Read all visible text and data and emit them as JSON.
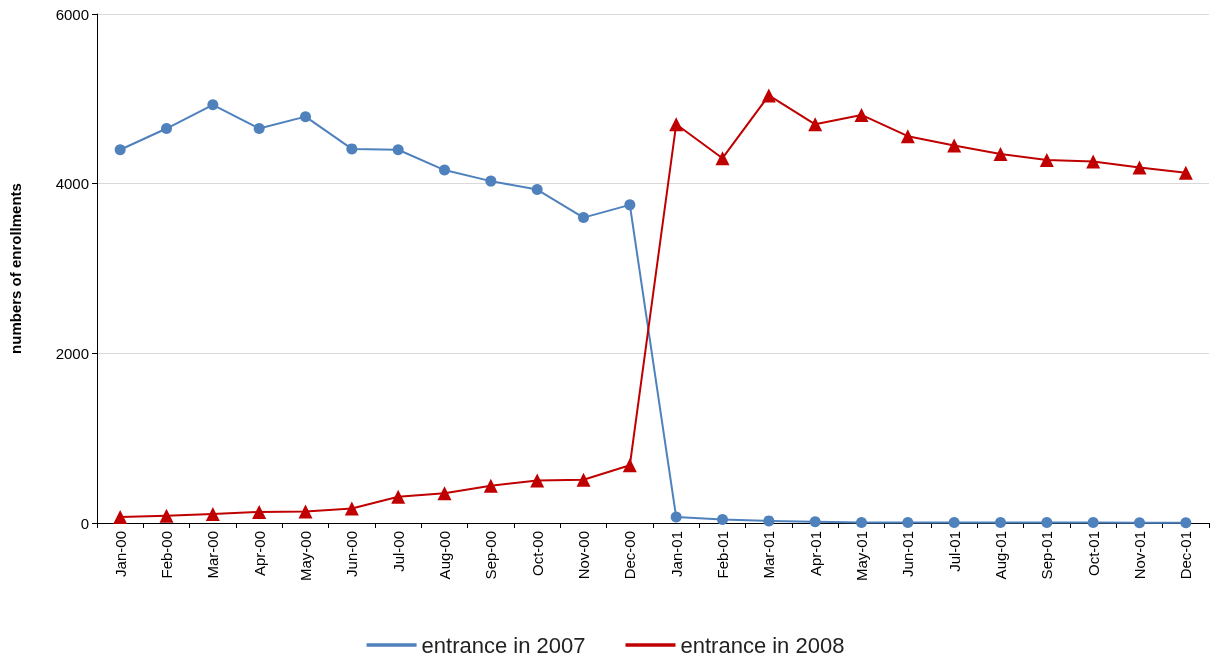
{
  "chart_data": {
    "type": "line",
    "ylabel": "numbers of enrollments",
    "categories": [
      "Jan-00",
      "Feb-00",
      "Mar-00",
      "Apr-00",
      "May-00",
      "Jun-00",
      "Jul-00",
      "Aug-00",
      "Sep-00",
      "Oct-00",
      "Nov-00",
      "Dec-00",
      "Jan-01",
      "Feb-01",
      "Mar-01",
      "Apr-01",
      "May-01",
      "Jun-01",
      "Jul-01",
      "Aug-01",
      "Sep-01",
      "Oct-01",
      "Nov-01",
      "Dec-01"
    ],
    "series": [
      {
        "name": "entrance in 2007",
        "color": "#4f81bd",
        "marker": "circle",
        "values": [
          4400,
          4650,
          4930,
          4650,
          4790,
          4410,
          4400,
          4160,
          4030,
          3930,
          3600,
          3750,
          70,
          40,
          25,
          15,
          5,
          5,
          5,
          5,
          5,
          5,
          3,
          3
        ]
      },
      {
        "name": "entrance in 2008",
        "color": "#c00000",
        "marker": "triangle",
        "values": [
          70,
          85,
          105,
          130,
          135,
          170,
          310,
          350,
          440,
          500,
          510,
          680,
          4700,
          4300,
          5040,
          4700,
          4810,
          4560,
          4450,
          4350,
          4280,
          4260,
          4190,
          4130
        ]
      }
    ],
    "ylim": [
      0,
      6000
    ],
    "yticks": [
      0,
      2000,
      4000,
      6000
    ],
    "grid": "y",
    "legend": "bottom"
  }
}
